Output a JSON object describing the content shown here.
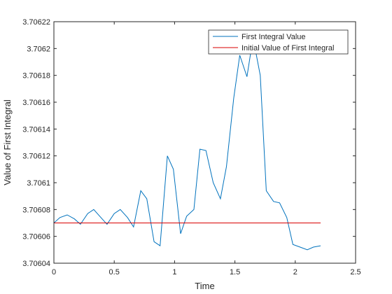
{
  "chart_data": {
    "type": "line",
    "title": "",
    "xlabel": "Time",
    "ylabel": "Value of First Integral",
    "xlim": [
      0,
      2.5
    ],
    "ylim": [
      3.70604,
      3.70622
    ],
    "xticks": [
      0,
      0.5,
      1,
      1.5,
      2,
      2.5
    ],
    "xtick_labels": [
      "0",
      "0.5",
      "1",
      "1.5",
      "2",
      "2.5"
    ],
    "yticks": [
      3.70604,
      3.70606,
      3.70608,
      3.7061,
      3.70612,
      3.70614,
      3.70616,
      3.70618,
      3.7062,
      3.70622
    ],
    "ytick_labels": [
      "3.70604",
      "3.70606",
      "3.70608",
      "3.7061",
      "3.70612",
      "3.70614",
      "3.70616",
      "3.70618",
      "3.7062",
      "3.70622"
    ],
    "grid": false,
    "legend_position": "top-right",
    "series": [
      {
        "name": "First Integral Value",
        "color": "#0072BD",
        "x": [
          0,
          0.05,
          0.11,
          0.17,
          0.22,
          0.28,
          0.33,
          0.38,
          0.44,
          0.5,
          0.55,
          0.61,
          0.66,
          0.72,
          0.77,
          0.83,
          0.88,
          0.94,
          0.99,
          1.05,
          1.1,
          1.16,
          1.21,
          1.26,
          1.32,
          1.38,
          1.43,
          1.49,
          1.54,
          1.6,
          1.65,
          1.71,
          1.76,
          1.82,
          1.87,
          1.93,
          1.98,
          2.04,
          2.1,
          2.15,
          2.21
        ],
        "y": [
          3.70607,
          3.706074,
          3.706076,
          3.706073,
          3.706069,
          3.706077,
          3.70608,
          3.706075,
          3.706069,
          3.706077,
          3.70608,
          3.706074,
          3.706067,
          3.706094,
          3.706088,
          3.706056,
          3.706053,
          3.70612,
          3.70611,
          3.706062,
          3.706075,
          3.70608,
          3.706125,
          3.706124,
          3.7061,
          3.706088,
          3.706112,
          3.706163,
          3.706195,
          3.706179,
          3.706208,
          3.70618,
          3.706094,
          3.706086,
          3.706085,
          3.706074,
          3.706054,
          3.706052,
          3.70605,
          3.706052,
          3.706053
        ]
      },
      {
        "name": "Initial Value of First Integral",
        "color": "#D90000",
        "x": [
          0,
          2.21
        ],
        "y": [
          3.70607,
          3.70607
        ]
      }
    ]
  }
}
